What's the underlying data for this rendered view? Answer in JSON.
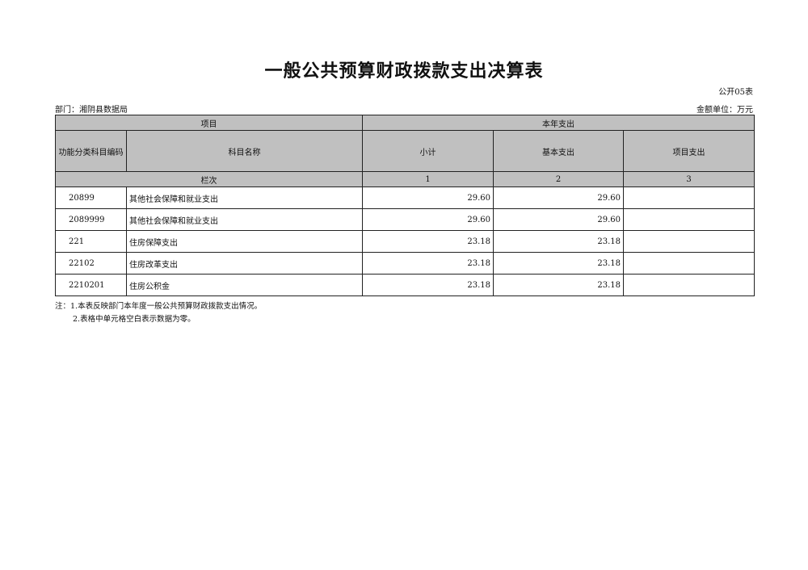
{
  "title": "一般公共预算财政拨款支出决算表",
  "table_code": "公开05表",
  "department": "部门：湘阴县数据局",
  "unit": "金额单位：万元",
  "header": {
    "project": "项目",
    "current_year": "本年支出",
    "code_col": "功能分类科目编码",
    "name_col": "科目名称",
    "subtotal": "小计",
    "basic": "基本支出",
    "project_exp": "项目支出",
    "row_index": "栏次",
    "idx1": "1",
    "idx2": "2",
    "idx3": "3"
  },
  "rows": [
    {
      "code": "20899",
      "name": "其他社会保障和就业支出",
      "subtotal": "29.60",
      "basic": "29.60",
      "project": ""
    },
    {
      "code": "2089999",
      "name": "其他社会保障和就业支出",
      "subtotal": "29.60",
      "basic": "29.60",
      "project": ""
    },
    {
      "code": "221",
      "name": "住房保障支出",
      "subtotal": "23.18",
      "basic": "23.18",
      "project": ""
    },
    {
      "code": "22102",
      "name": "住房改革支出",
      "subtotal": "23.18",
      "basic": "23.18",
      "project": ""
    },
    {
      "code": "2210201",
      "name": "住房公积金",
      "subtotal": "23.18",
      "basic": "23.18",
      "project": ""
    }
  ],
  "notes": [
    "注：1.本表反映部门本年度一般公共预算财政拨款支出情况。",
    "2.表格中单元格空白表示数据为零。"
  ],
  "colors": {
    "header_bg": "#c0c0c0"
  }
}
